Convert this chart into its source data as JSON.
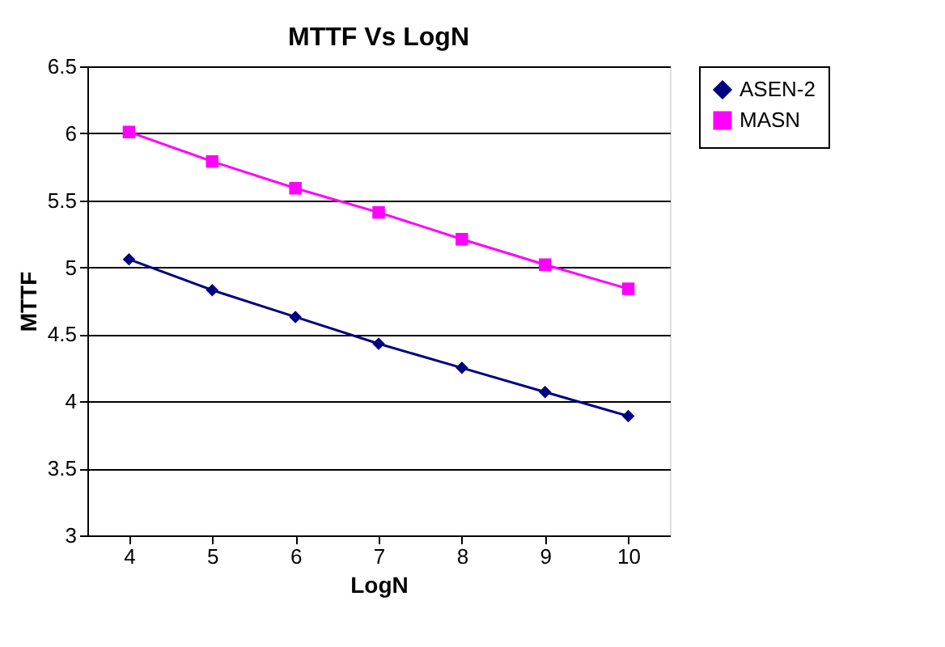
{
  "chart_data": {
    "type": "line",
    "title": "MTTF Vs LogN",
    "xlabel": "LogN",
    "ylabel": "MTTF",
    "categories": [
      "4",
      "5",
      "6",
      "7",
      "8",
      "9",
      "10"
    ],
    "series": [
      {
        "name": "ASEN-2",
        "color": "#000080",
        "marker": "diamond",
        "values": [
          5.06,
          4.83,
          4.63,
          4.43,
          4.25,
          4.07,
          3.89
        ]
      },
      {
        "name": "MASN",
        "color": "#ff00ff",
        "marker": "square",
        "values": [
          6.01,
          5.79,
          5.59,
          5.41,
          5.21,
          5.02,
          4.84
        ]
      }
    ],
    "ylim": [
      3,
      6.5
    ],
    "yticks": [
      3,
      3.5,
      4,
      4.5,
      5,
      5.5,
      6,
      6.5
    ],
    "grid": "y",
    "legend": "right"
  }
}
